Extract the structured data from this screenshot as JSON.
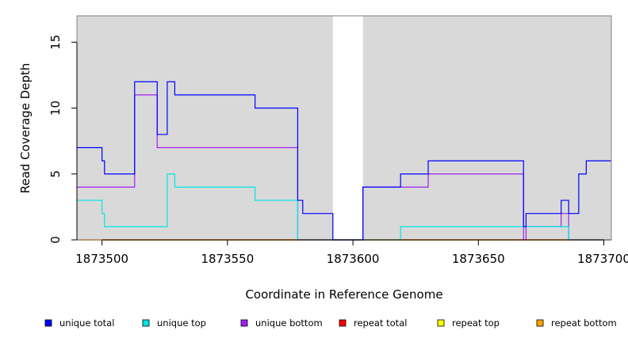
{
  "chart_data": {
    "type": "line",
    "title": "",
    "xlabel": "Coordinate in Reference Genome",
    "ylabel": "Read Coverage Depth",
    "xlim": [
      1873490,
      1873703
    ],
    "ylim": [
      0,
      17
    ],
    "x_ticks": [
      1873500,
      1873550,
      1873600,
      1873650,
      1873700
    ],
    "y_ticks": [
      0,
      5,
      10,
      15
    ],
    "x_tick_labels": [
      "1873500",
      "1873550",
      "1873600",
      "1873650",
      "1873700"
    ],
    "y_tick_labels": [
      "0",
      "5",
      "10",
      "15"
    ],
    "background_color": "#d9d9d9",
    "gap_region": [
      1873592,
      1873604
    ],
    "grid": false,
    "legend_position": "bottom",
    "series": [
      {
        "name": "unique total",
        "color": "#0000ff",
        "x": [
          1873490,
          1873500,
          1873501,
          1873513,
          1873522,
          1873526,
          1873529,
          1873561,
          1873578,
          1873580,
          1873592,
          1873604,
          1873619,
          1873630,
          1873668,
          1873669,
          1873683,
          1873686,
          1873690,
          1873693,
          1873703
        ],
        "y": [
          7,
          6,
          5,
          12,
          8,
          12,
          11,
          10,
          3,
          2,
          0,
          4,
          5,
          6,
          1,
          2,
          3,
          2,
          5,
          6,
          6
        ]
      },
      {
        "name": "unique top",
        "color": "#00e5e5",
        "x": [
          1873490,
          1873500,
          1873501,
          1873526,
          1873529,
          1873561,
          1873578,
          1873592,
          1873604,
          1873619,
          1873686,
          1873703
        ],
        "y": [
          3,
          2,
          1,
          5,
          4,
          3,
          0,
          0,
          0,
          1,
          0,
          0
        ]
      },
      {
        "name": "unique bottom",
        "color": "#a020f0",
        "x": [
          1873490,
          1873513,
          1873522,
          1873578,
          1873592,
          1873604,
          1873630,
          1873668,
          1873669,
          1873683,
          1873686,
          1873703
        ],
        "y": [
          4,
          11,
          7,
          0,
          0,
          4,
          5,
          0,
          1,
          2,
          0,
          0
        ]
      },
      {
        "name": "repeat total",
        "color": "#ff0000",
        "x": [
          1873490,
          1873703
        ],
        "y": [
          0,
          0
        ]
      },
      {
        "name": "repeat top",
        "color": "#ffff00",
        "x": [
          1873490,
          1873703
        ],
        "y": [
          0,
          0
        ]
      },
      {
        "name": "repeat bottom",
        "color": "#ffa500",
        "x": [
          1873490,
          1873703
        ],
        "y": [
          0,
          0
        ]
      }
    ]
  }
}
